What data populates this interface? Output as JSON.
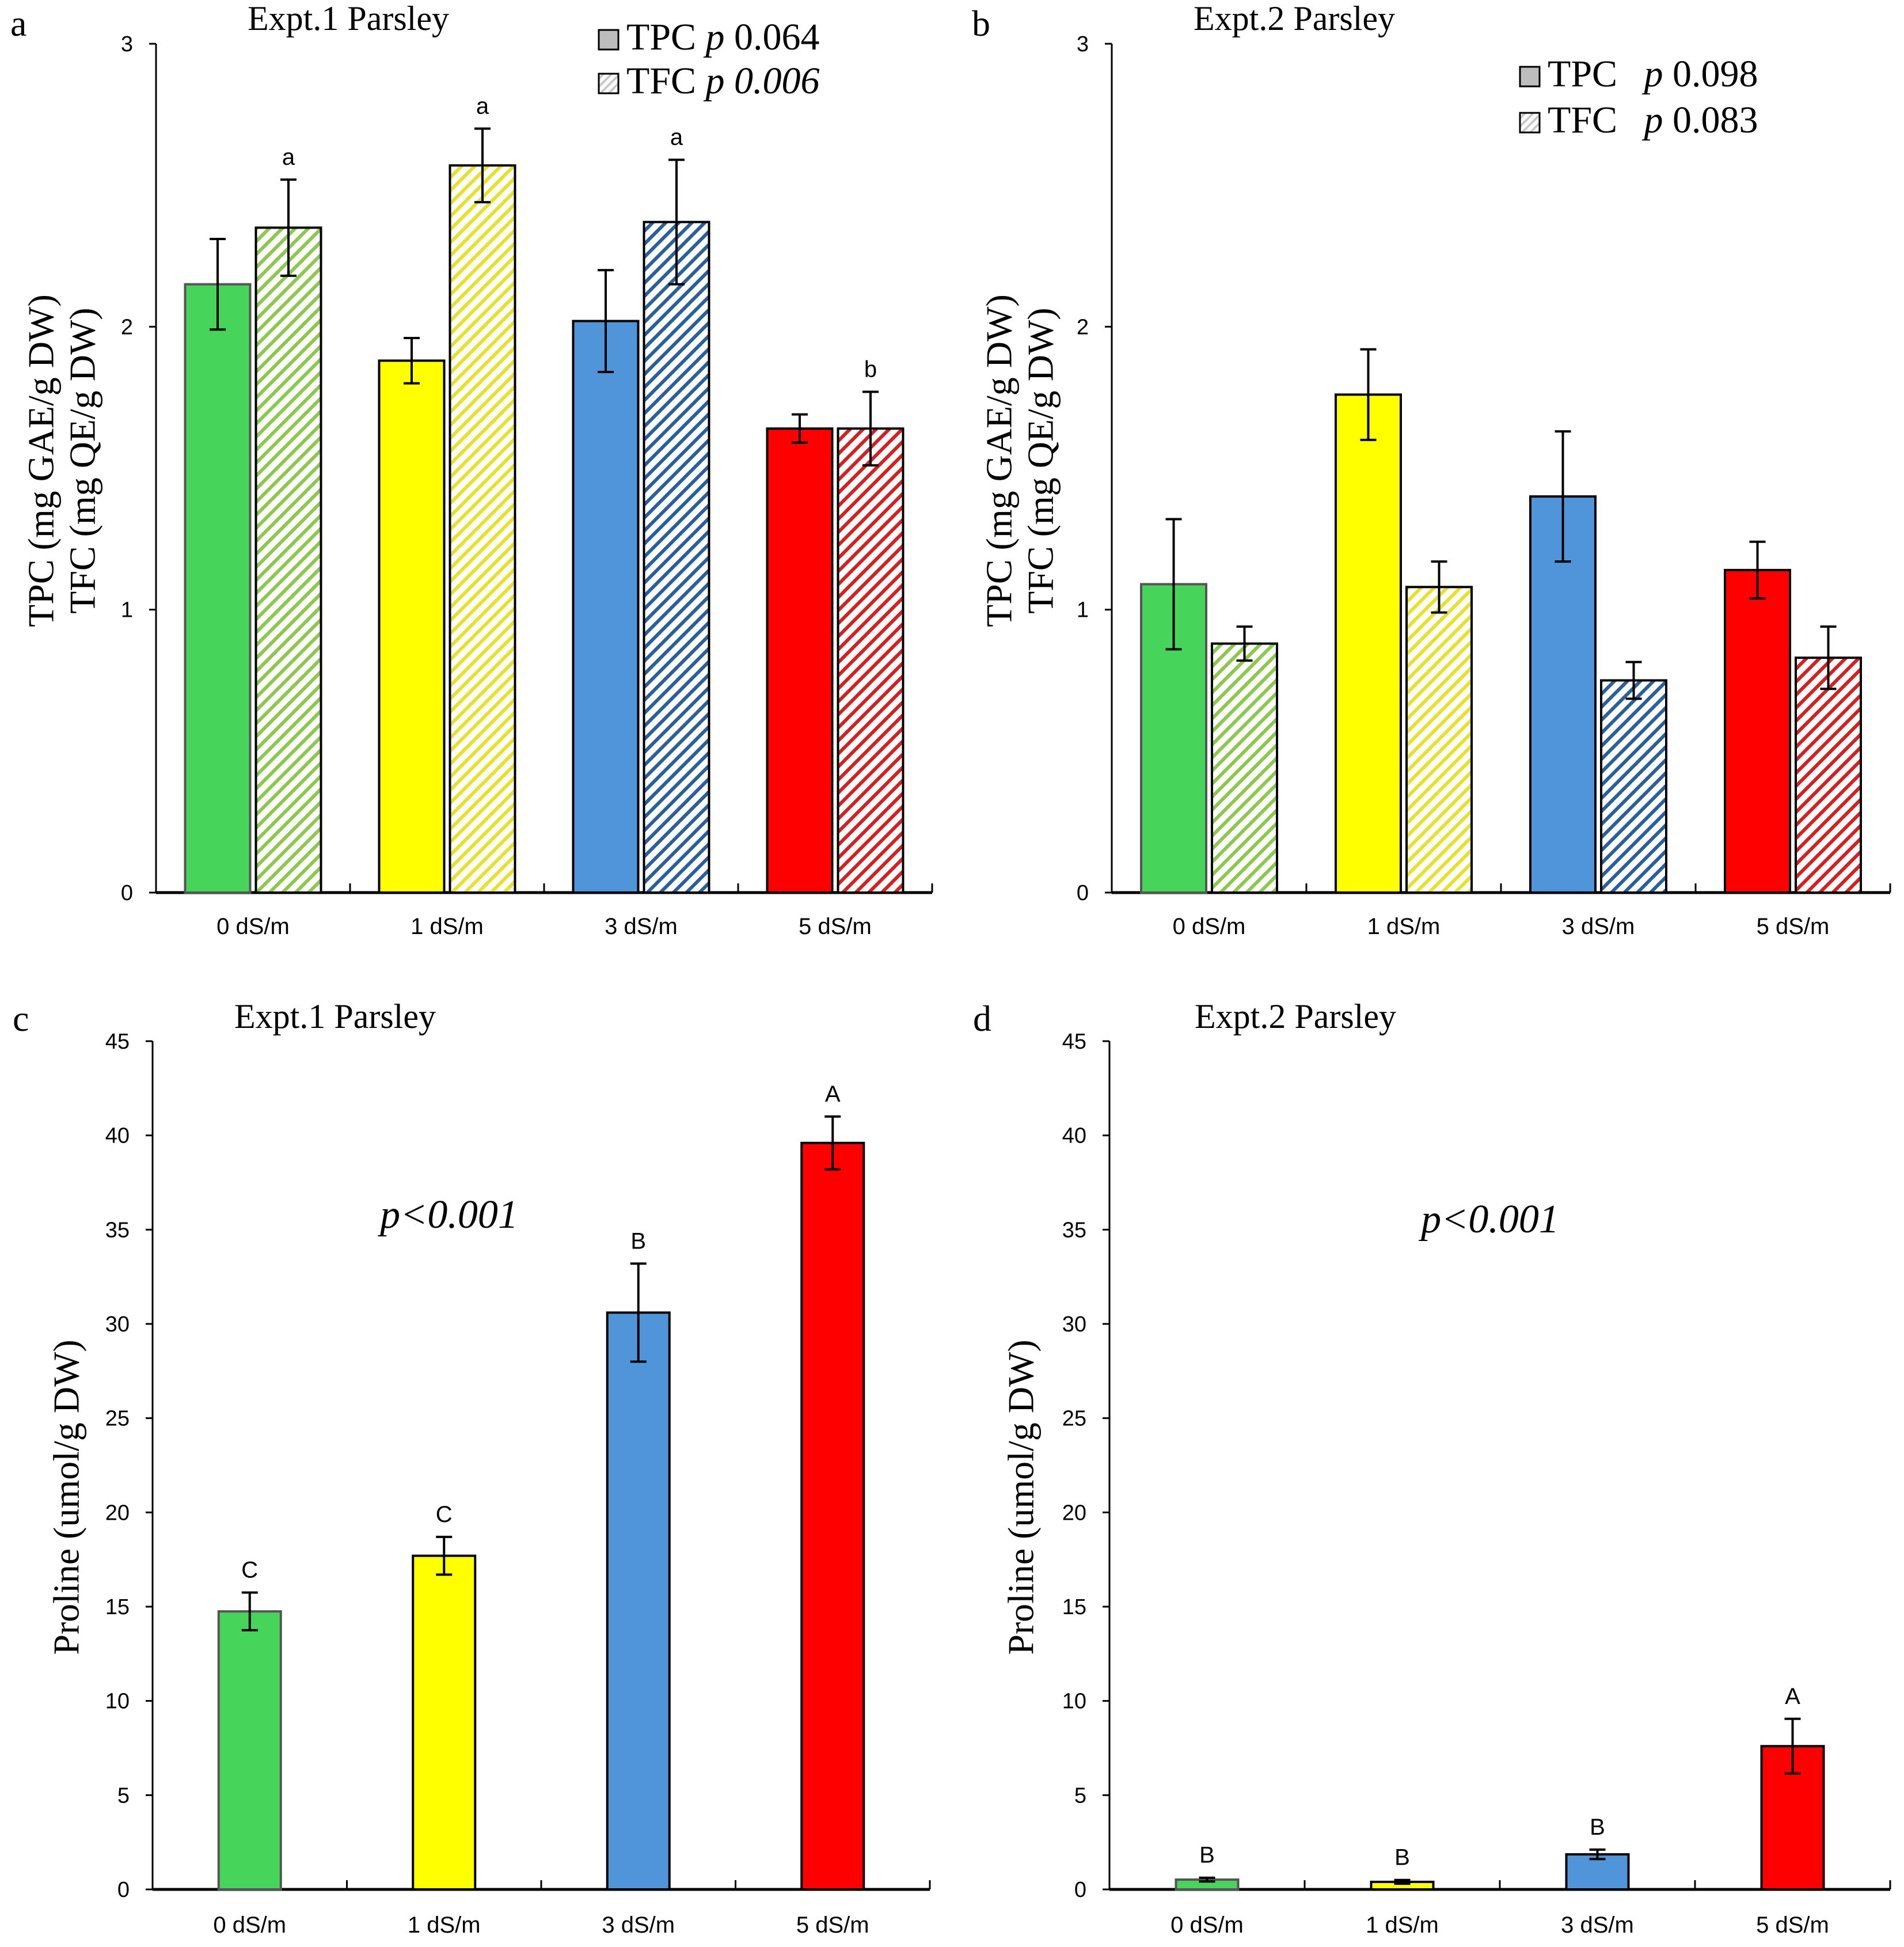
{
  "chart_data": [
    {
      "panel_letter": "a",
      "type": "bar",
      "title": "Expt.1 Parsley",
      "ylabel_lines": [
        "TPC (mg GAE/g DW)",
        "TFC (mg QE/g DW)"
      ],
      "xlabel": "",
      "categories": [
        "0 dS/m",
        "1 dS/m",
        "3 dS/m",
        "5 dS/m"
      ],
      "ylim": [
        0,
        3
      ],
      "yticks": [
        0,
        1,
        2,
        3
      ],
      "grid": false,
      "legend": {
        "placement": "top-right",
        "entries": [
          {
            "name": "TPC",
            "p_prefix": "p",
            "p_value": "0.064",
            "p_italic": false,
            "swatch": "solid-gray"
          },
          {
            "name": "TFC",
            "p_prefix": "p",
            "p_value": "0.006",
            "p_italic": true,
            "swatch": "hatched-gray"
          }
        ]
      },
      "series": [
        {
          "name": "TPC",
          "style": "solid",
          "values": [
            2.15,
            1.88,
            2.02,
            1.64
          ],
          "errors": [
            0.16,
            0.08,
            0.18,
            0.05
          ],
          "letters": [
            "",
            "",
            "",
            ""
          ]
        },
        {
          "name": "TFC",
          "style": "hatched",
          "values": [
            2.35,
            2.57,
            2.37,
            1.64
          ],
          "errors": [
            0.17,
            0.13,
            0.22,
            0.13
          ],
          "letters": [
            "a",
            "a",
            "a",
            "b"
          ]
        }
      ],
      "annotation": ""
    },
    {
      "panel_letter": "b",
      "type": "bar",
      "title": "Expt.2 Parsley",
      "ylabel_lines": [
        "TPC (mg GAE/g DW)",
        "TFC (mg QE/g DW)"
      ],
      "xlabel": "",
      "categories": [
        "0 dS/m",
        "1 dS/m",
        "3 dS/m",
        "5 dS/m"
      ],
      "ylim": [
        0,
        3
      ],
      "yticks": [
        0,
        1,
        2,
        3
      ],
      "grid": false,
      "legend": {
        "placement": "top-right",
        "entries": [
          {
            "name": "TPC",
            "p_prefix": "p",
            "p_value": "0.098",
            "p_italic": false,
            "swatch": "solid-gray"
          },
          {
            "name": "TFC",
            "p_prefix": "p",
            "p_value": "0.083",
            "p_italic": false,
            "swatch": "hatched-gray"
          }
        ]
      },
      "series": [
        {
          "name": "TPC",
          "style": "solid",
          "values": [
            1.09,
            1.76,
            1.4,
            1.14
          ],
          "errors": [
            0.23,
            0.16,
            0.23,
            0.1
          ],
          "letters": [
            "",
            "",
            "",
            ""
          ]
        },
        {
          "name": "TFC",
          "style": "hatched",
          "values": [
            0.88,
            1.08,
            0.75,
            0.83
          ],
          "errors": [
            0.06,
            0.09,
            0.065,
            0.11
          ],
          "letters": [
            "",
            "",
            "",
            ""
          ]
        }
      ],
      "annotation": ""
    },
    {
      "panel_letter": "c",
      "type": "bar",
      "title": "Expt.1 Parsley",
      "ylabel_lines": [
        "Proline (umol/g DW)"
      ],
      "xlabel": "",
      "categories": [
        "0 dS/m",
        "1 dS/m",
        "3 dS/m",
        "5 dS/m"
      ],
      "ylim": [
        0,
        45
      ],
      "yticks": [
        0,
        5,
        10,
        15,
        20,
        25,
        30,
        35,
        40,
        45
      ],
      "grid": false,
      "legend": null,
      "series": [
        {
          "name": "Proline",
          "style": "solid",
          "values": [
            14.75,
            17.7,
            30.6,
            39.6
          ],
          "errors": [
            1.0,
            1.0,
            2.6,
            1.4
          ],
          "letters": [
            "C",
            "C",
            "B",
            "A"
          ]
        }
      ],
      "annotation": "p<0.001"
    },
    {
      "panel_letter": "d",
      "type": "bar",
      "title": "Expt.2 Parsley",
      "ylabel_lines": [
        "Proline (umol/g DW)"
      ],
      "xlabel": "",
      "categories": [
        "0 dS/m",
        "1 dS/m",
        "3 dS/m",
        "5 dS/m"
      ],
      "ylim": [
        0,
        45
      ],
      "yticks": [
        0,
        5,
        10,
        15,
        20,
        25,
        30,
        35,
        40,
        45
      ],
      "grid": false,
      "legend": null,
      "series": [
        {
          "name": "Proline",
          "style": "solid",
          "values": [
            0.52,
            0.4,
            1.86,
            7.6
          ],
          "errors": [
            0.1,
            0.1,
            0.25,
            1.45
          ],
          "letters": [
            "B",
            "B",
            "B",
            "A"
          ]
        }
      ],
      "annotation": "p<0.001"
    }
  ],
  "colors": {
    "category_colors": [
      "#47d45a",
      "#ffff00",
      "#5095d9",
      "#ff0000"
    ],
    "hatch_colors": [
      "#8cc84b",
      "#e6e22a",
      "#2a5f9e",
      "#d42020"
    ],
    "legend_solid_swatch": "#bdbdbd",
    "legend_hatch_swatch": "#c8c8c8",
    "axis": "#000000",
    "text": "#000000"
  }
}
